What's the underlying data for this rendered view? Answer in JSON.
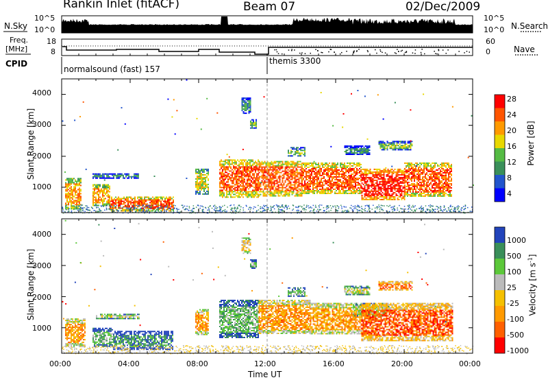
{
  "header": {
    "station": "Rankin Inlet (fitACF)",
    "beam": "Beam 07",
    "date": "02/Dec/2009"
  },
  "nsky_panel": {
    "left_label": "N.Sky",
    "right_label": "N.Search",
    "left_ticks": [
      "10^5",
      "10^0"
    ],
    "right_ticks": [
      "10^5",
      "10^0"
    ]
  },
  "freq_panel": {
    "left_label_line1": "Freq.",
    "left_label_line2": "[MHz]",
    "left_ticks": [
      "18",
      "8"
    ],
    "right_label": "Nave",
    "right_ticks": [
      "60",
      "0"
    ]
  },
  "cpid": {
    "label": "CPID",
    "segments": [
      {
        "start_hour": 0,
        "end_hour": 12,
        "text": "normalsound (fast) 157"
      },
      {
        "start_hour": 12,
        "end_hour": 24,
        "text": "themis 3300"
      }
    ]
  },
  "x_axis": {
    "label": "Time UT",
    "ticks": [
      "00:00",
      "04:00",
      "08:00",
      "12:00",
      "16:00",
      "20:00",
      "00:00"
    ]
  },
  "chart_data": [
    {
      "type": "heatmap",
      "title": "",
      "xlabel": "Time UT",
      "ylabel": "Slant Range [km]",
      "xlim_hours": [
        0,
        24
      ],
      "ylim_km": [
        180,
        4500
      ],
      "yticks": [
        "1000",
        "2000",
        "3000",
        "4000"
      ],
      "colorbar": {
        "label": "Power [dB]",
        "ticks": [
          "4",
          "8",
          "12",
          "16",
          "20",
          "24",
          "28"
        ],
        "colors": [
          "#0000ff",
          "#2255cc",
          "#3a8f5a",
          "#55bb44",
          "#e8d800",
          "#ff9a00",
          "#ff5500",
          "#ff0000"
        ]
      },
      "echo_regions": [
        {
          "t0": 0.2,
          "t1": 1.1,
          "r0": 300,
          "r1": 1300,
          "level": 5
        },
        {
          "t0": 1.8,
          "t1": 2.8,
          "r0": 400,
          "r1": 1100,
          "level": 5
        },
        {
          "t0": 2.8,
          "t1": 6.5,
          "r0": 250,
          "r1": 700,
          "level": 6
        },
        {
          "t0": 1.8,
          "t1": 4.5,
          "r0": 1300,
          "r1": 1450,
          "level": 2
        },
        {
          "t0": 7.8,
          "t1": 8.6,
          "r0": 800,
          "r1": 1600,
          "level": 4
        },
        {
          "t0": 9.2,
          "t1": 11.5,
          "r0": 700,
          "r1": 1900,
          "level": 6
        },
        {
          "t0": 11.5,
          "t1": 14.0,
          "r0": 700,
          "r1": 1850,
          "level": 6
        },
        {
          "t0": 14.0,
          "t1": 17.5,
          "r0": 800,
          "r1": 1800,
          "level": 6
        },
        {
          "t0": 17.5,
          "t1": 20.0,
          "r0": 600,
          "r1": 1600,
          "level": 7
        },
        {
          "t0": 20.0,
          "t1": 22.8,
          "r0": 700,
          "r1": 1800,
          "level": 6
        },
        {
          "t0": 10.5,
          "t1": 11.0,
          "r0": 3400,
          "r1": 3900,
          "level": 2
        },
        {
          "t0": 11.0,
          "t1": 11.4,
          "r0": 2900,
          "r1": 3200,
          "level": 3
        },
        {
          "t0": 13.2,
          "t1": 14.2,
          "r0": 2000,
          "r1": 2300,
          "level": 3
        },
        {
          "t0": 16.5,
          "t1": 18.0,
          "r0": 2050,
          "r1": 2350,
          "level": 2
        },
        {
          "t0": 18.5,
          "t1": 20.5,
          "r0": 2200,
          "r1": 2500,
          "level": 3
        }
      ]
    },
    {
      "type": "heatmap",
      "title": "",
      "xlabel": "Time UT",
      "ylabel": "Slant Range [km]",
      "xlim_hours": [
        0,
        24
      ],
      "ylim_km": [
        180,
        4500
      ],
      "yticks": [
        "1000",
        "2000",
        "3000",
        "4000"
      ],
      "colorbar": {
        "label": "Velocity [m s^-1]",
        "ticks": [
          "1000",
          "500",
          "100",
          "25",
          "-25",
          "-100",
          "-500",
          "-1000"
        ],
        "colors": [
          "#2244bb",
          "#3a8f5a",
          "#5cc83a",
          "#bbbbbb",
          "#f5c000",
          "#ff9a00",
          "#ff6000",
          "#ff0000"
        ]
      },
      "echo_regions": [
        {
          "t0": 0.2,
          "t1": 1.4,
          "r0": 400,
          "r1": 1300,
          "level": 5
        },
        {
          "t0": 1.8,
          "t1": 3.0,
          "r0": 400,
          "r1": 1000,
          "level": 2
        },
        {
          "t0": 3.0,
          "t1": 6.5,
          "r0": 300,
          "r1": 900,
          "level": 1
        },
        {
          "t0": 2.0,
          "t1": 4.5,
          "r0": 1300,
          "r1": 1450,
          "level": 3
        },
        {
          "t0": 7.8,
          "t1": 8.6,
          "r0": 800,
          "r1": 1600,
          "level": 5
        },
        {
          "t0": 9.2,
          "t1": 11.5,
          "r0": 700,
          "r1": 1900,
          "level": 2
        },
        {
          "t0": 11.5,
          "t1": 14.5,
          "r0": 800,
          "r1": 1900,
          "level": 5
        },
        {
          "t0": 14.5,
          "t1": 17.5,
          "r0": 800,
          "r1": 1800,
          "level": 5
        },
        {
          "t0": 17.0,
          "t1": 19.0,
          "r0": 1400,
          "r1": 1800,
          "level": 3
        },
        {
          "t0": 17.5,
          "t1": 22.8,
          "r0": 600,
          "r1": 1800,
          "level": 6
        },
        {
          "t0": 10.5,
          "t1": 11.0,
          "r0": 3400,
          "r1": 3900,
          "level": 4
        },
        {
          "t0": 11.0,
          "t1": 11.4,
          "r0": 2900,
          "r1": 3200,
          "level": 2
        },
        {
          "t0": 13.2,
          "t1": 14.2,
          "r0": 2000,
          "r1": 2300,
          "level": 2
        },
        {
          "t0": 16.5,
          "t1": 18.0,
          "r0": 2050,
          "r1": 2350,
          "level": 3
        },
        {
          "t0": 18.5,
          "t1": 20.5,
          "r0": 2200,
          "r1": 2500,
          "level": 6
        }
      ]
    }
  ]
}
